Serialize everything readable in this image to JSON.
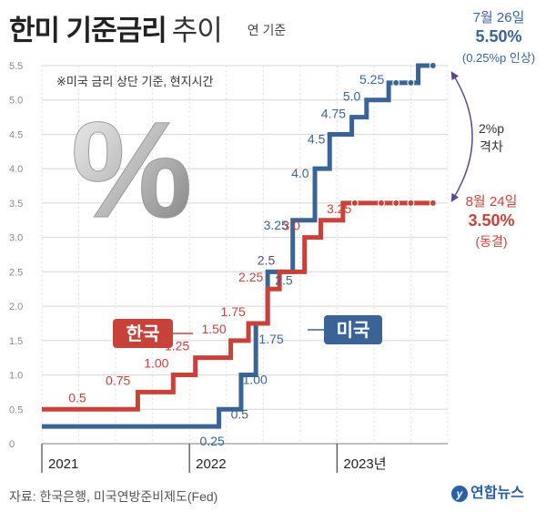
{
  "title": {
    "main": "한미 기준금리",
    "sub": "추이",
    "basis": "연 기준"
  },
  "note": "※미국 금리 상단 기준, 현지시간",
  "source": "자료: 한국은행, 미국연방준비제도(Fed)",
  "logo": "연합뉴스",
  "colors": {
    "korea": "#c9423a",
    "usa": "#3a6496",
    "gap": "#5b4a8a",
    "grid": "#d7d7d7",
    "axis": "#999999"
  },
  "chart_data": {
    "type": "line",
    "step": true,
    "ylim": [
      0,
      5.5
    ],
    "yticks": [
      "0",
      "0.5",
      "1.0",
      "1.5",
      "2.0",
      "2.5",
      "3.0",
      "3.5",
      "4.0",
      "4.5",
      "5.0",
      "5.5"
    ],
    "ytick_values": [
      0,
      0.5,
      1.0,
      1.5,
      2.0,
      2.5,
      3.0,
      3.5,
      4.0,
      4.5,
      5.0,
      5.5
    ],
    "xlim": [
      2021.0,
      2023.75
    ],
    "year_labels": [
      {
        "x": 2021.0,
        "label": "2021"
      },
      {
        "x": 2022.0,
        "label": "2022"
      },
      {
        "x": 2023.0,
        "label": "2023년"
      }
    ],
    "series": [
      {
        "name": "한국",
        "points": [
          [
            2021.0,
            0.5
          ],
          [
            2021.65,
            0.75
          ],
          [
            2021.89,
            1.0
          ],
          [
            2022.04,
            1.25
          ],
          [
            2022.28,
            1.5
          ],
          [
            2022.4,
            1.75
          ],
          [
            2022.53,
            2.25
          ],
          [
            2022.61,
            2.5
          ],
          [
            2022.78,
            3.0
          ],
          [
            2022.89,
            3.25
          ],
          [
            2023.04,
            3.5
          ],
          [
            2023.65,
            3.5
          ]
        ],
        "labels": [
          "0.5",
          "0.75",
          "1.00",
          "1.25",
          "1.50",
          "1.75",
          "2.25",
          "2.5",
          "3.0",
          "3.25"
        ]
      },
      {
        "name": "미국",
        "points": [
          [
            2021.0,
            0.25
          ],
          [
            2022.2,
            0.5
          ],
          [
            2022.35,
            1.0
          ],
          [
            2022.45,
            1.75
          ],
          [
            2022.53,
            2.5
          ],
          [
            2022.7,
            3.25
          ],
          [
            2022.85,
            4.0
          ],
          [
            2022.95,
            4.5
          ],
          [
            2023.1,
            4.75
          ],
          [
            2023.2,
            5.0
          ],
          [
            2023.35,
            5.25
          ],
          [
            2023.55,
            5.5
          ],
          [
            2023.65,
            5.5
          ]
        ],
        "labels": [
          "0.25",
          "0.5",
          "1.00",
          "1.75",
          "2.5",
          "3.25",
          "4.0",
          "4.5",
          "4.75",
          "5.0",
          "5.25"
        ]
      }
    ],
    "legend": {
      "korea": "한국",
      "usa": "미국"
    },
    "annotations": {
      "usa_date": "7월 26일",
      "usa_rate": "5.50%",
      "usa_change": "(0.25%p 인상)",
      "korea_date": "8월 24일",
      "korea_rate": "3.50%",
      "korea_change": "(동결)",
      "gap_value": "2%p",
      "gap_word": "격차"
    },
    "percent_mark": "%"
  }
}
